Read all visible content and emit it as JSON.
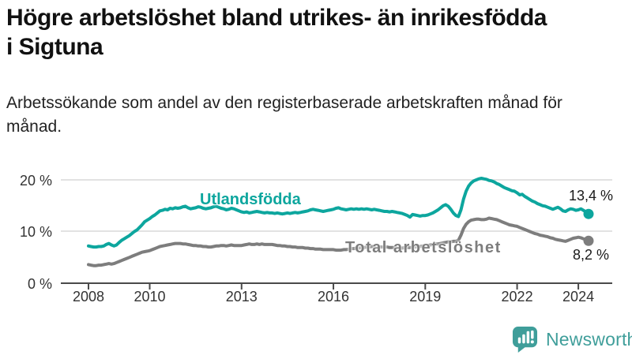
{
  "title": "Högre arbetslöshet bland utrikes- än inrikesfödda i Sigtuna",
  "subtitle": "Arbetssökande som andel av den registerbaserade arbetskraften månad för månad.",
  "logo": {
    "text": "Newsworthy",
    "icon": "bar-chart-speech-bubble-icon",
    "color": "#3f9e9a"
  },
  "colors": {
    "accent_teal": "#0da69e",
    "series_gray": "#7d7d7d",
    "gridline": "#d9d9d9",
    "axis": "#4a4a4a"
  },
  "chart_data": {
    "type": "line",
    "title": "Högre arbetslöshet bland utrikes- än inrikesfödda i Sigtuna",
    "xlabel": "",
    "ylabel": "Arbetssökande som andel av den registerbaserade arbetskraften",
    "x_unit": "månad",
    "x_range": [
      "2008-01",
      "2024-05"
    ],
    "x_tick_years": [
      2008,
      2010,
      2013,
      2016,
      2019,
      2022,
      2024
    ],
    "y_tick_labels": [
      "0 %",
      "10 %",
      "20 %"
    ],
    "ylim": [
      0,
      21.8
    ],
    "grid": "horizontal",
    "legend_position": "inline-line-labels",
    "series": [
      {
        "name": "Utlandsfödda",
        "color": "#0da69e",
        "end_label": "13,4 %",
        "end_value": 13.4,
        "values": [
          7.2,
          7.1,
          7.0,
          7.0,
          7.1,
          7.1,
          7.2,
          7.5,
          7.7,
          7.4,
          7.2,
          7.4,
          7.9,
          8.3,
          8.6,
          8.9,
          9.2,
          9.6,
          10.0,
          10.3,
          10.8,
          11.3,
          11.9,
          12.2,
          12.5,
          12.9,
          13.2,
          13.6,
          14.0,
          14.1,
          14.3,
          14.2,
          14.5,
          14.4,
          14.6,
          14.5,
          14.6,
          14.8,
          14.9,
          14.6,
          14.4,
          14.5,
          14.6,
          14.8,
          14.7,
          14.5,
          14.4,
          14.5,
          14.6,
          14.8,
          14.9,
          14.7,
          14.5,
          14.4,
          14.2,
          14.3,
          14.5,
          14.4,
          14.2,
          14.0,
          13.8,
          13.7,
          13.8,
          13.6,
          13.7,
          13.8,
          13.9,
          13.8,
          13.7,
          13.6,
          13.7,
          13.6,
          13.6,
          13.5,
          13.6,
          13.5,
          13.4,
          13.5,
          13.6,
          13.5,
          13.6,
          13.7,
          13.6,
          13.7,
          13.8,
          13.9,
          14.0,
          14.2,
          14.3,
          14.2,
          14.1,
          14.0,
          13.9,
          14.0,
          14.1,
          14.2,
          14.3,
          14.5,
          14.6,
          14.4,
          14.3,
          14.2,
          14.3,
          14.4,
          14.3,
          14.4,
          14.3,
          14.4,
          14.3,
          14.4,
          14.3,
          14.2,
          14.3,
          14.2,
          14.1,
          14.0,
          13.9,
          13.9,
          13.8,
          13.9,
          13.8,
          13.7,
          13.6,
          13.5,
          13.3,
          13.1,
          12.8,
          13.3,
          13.2,
          13.1,
          13.0,
          13.1,
          13.1,
          13.2,
          13.4,
          13.6,
          13.9,
          14.2,
          14.6,
          15.0,
          15.2,
          14.9,
          14.3,
          13.6,
          13.1,
          12.9,
          14.2,
          16.3,
          17.8,
          18.8,
          19.4,
          19.8,
          20.0,
          20.2,
          20.3,
          20.2,
          20.1,
          19.9,
          19.8,
          19.6,
          19.3,
          19.1,
          18.8,
          18.5,
          18.3,
          18.1,
          17.9,
          17.8,
          17.5,
          17.1,
          17.2,
          16.8,
          16.5,
          16.2,
          15.9,
          15.7,
          15.4,
          15.2,
          15.0,
          14.9,
          14.7,
          14.5,
          14.3,
          14.5,
          14.7,
          14.4,
          14.0,
          13.9,
          14.2,
          14.4,
          14.3,
          14.1,
          14.2,
          14.4,
          14.1,
          13.8,
          13.4
        ]
      },
      {
        "name": "Total arbetslöshet",
        "color": "#7d7d7d",
        "end_label": "8,2 %",
        "end_value": 8.2,
        "values": [
          3.6,
          3.5,
          3.4,
          3.4,
          3.5,
          3.5,
          3.6,
          3.7,
          3.8,
          3.7,
          3.8,
          4.0,
          4.2,
          4.4,
          4.6,
          4.8,
          5.0,
          5.2,
          5.4,
          5.6,
          5.8,
          6.0,
          6.1,
          6.2,
          6.3,
          6.5,
          6.7,
          6.9,
          7.1,
          7.2,
          7.3,
          7.4,
          7.5,
          7.6,
          7.7,
          7.7,
          7.7,
          7.6,
          7.6,
          7.5,
          7.4,
          7.3,
          7.3,
          7.2,
          7.2,
          7.1,
          7.1,
          7.0,
          7.0,
          7.1,
          7.2,
          7.2,
          7.3,
          7.3,
          7.2,
          7.3,
          7.4,
          7.3,
          7.3,
          7.3,
          7.3,
          7.4,
          7.5,
          7.6,
          7.5,
          7.5,
          7.6,
          7.5,
          7.6,
          7.5,
          7.5,
          7.5,
          7.5,
          7.4,
          7.3,
          7.3,
          7.2,
          7.2,
          7.1,
          7.1,
          7.0,
          7.0,
          6.9,
          6.9,
          6.9,
          6.8,
          6.8,
          6.7,
          6.7,
          6.6,
          6.6,
          6.6,
          6.5,
          6.5,
          6.5,
          6.5,
          6.5,
          6.4,
          6.4,
          6.4,
          6.5,
          6.5,
          6.6,
          6.7,
          6.7,
          6.8,
          6.8,
          6.9,
          6.9,
          7.0,
          7.0,
          7.1,
          7.1,
          7.1,
          7.0,
          7.0,
          7.0,
          7.0,
          6.9,
          6.9,
          6.9,
          6.9,
          6.8,
          6.8,
          6.9,
          6.9,
          6.9,
          7.0,
          7.0,
          7.1,
          7.1,
          7.2,
          7.2,
          7.3,
          7.4,
          7.5,
          7.6,
          7.6,
          7.7,
          7.8,
          7.9,
          8.0,
          8.0,
          8.1,
          8.1,
          8.3,
          9.3,
          10.6,
          11.4,
          11.9,
          12.2,
          12.3,
          12.4,
          12.4,
          12.3,
          12.3,
          12.4,
          12.6,
          12.5,
          12.4,
          12.3,
          12.1,
          11.9,
          11.7,
          11.5,
          11.3,
          11.2,
          11.1,
          11.0,
          10.8,
          10.6,
          10.4,
          10.2,
          10.0,
          9.8,
          9.6,
          9.5,
          9.3,
          9.2,
          9.1,
          9.0,
          8.8,
          8.7,
          8.5,
          8.4,
          8.3,
          8.2,
          8.1,
          8.3,
          8.5,
          8.7,
          8.8,
          8.9,
          8.8,
          8.6,
          8.4,
          8.2
        ]
      }
    ]
  }
}
